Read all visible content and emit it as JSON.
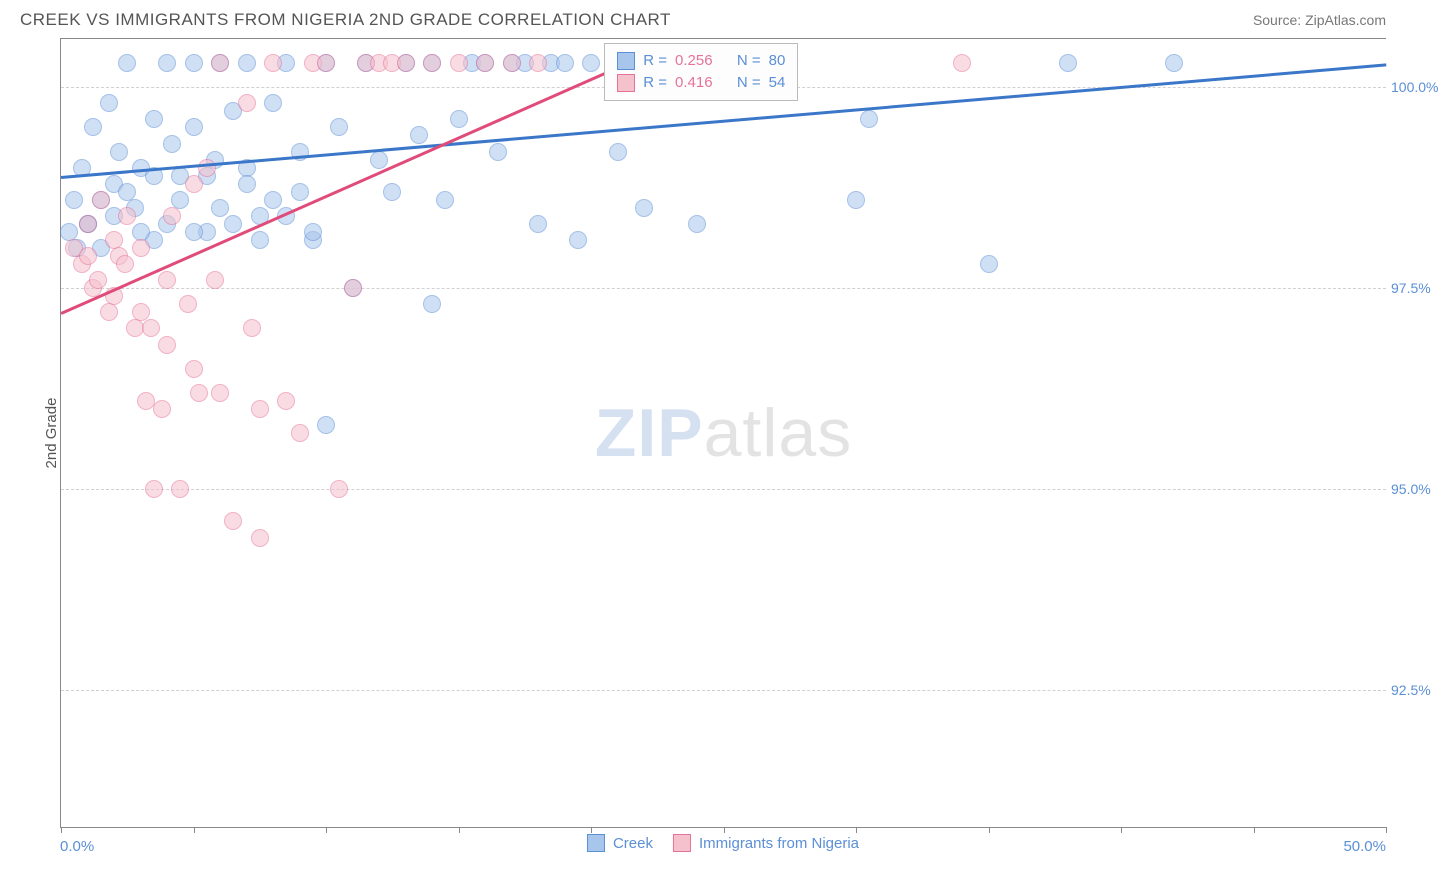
{
  "header": {
    "title": "CREEK VS IMMIGRANTS FROM NIGERIA 2ND GRADE CORRELATION CHART",
    "source": "Source: ZipAtlas.com"
  },
  "chart": {
    "type": "scatter",
    "ylabel": "2nd Grade",
    "xlim": [
      0,
      50
    ],
    "ylim": [
      90.8,
      100.6
    ],
    "x_ticks": [
      0,
      5,
      10,
      15,
      20,
      25,
      30,
      35,
      40,
      45,
      50
    ],
    "y_gridlines": [
      92.5,
      95.0,
      97.5,
      100.0
    ],
    "y_tick_labels": [
      "92.5%",
      "95.0%",
      "97.5%",
      "100.0%"
    ],
    "x_start_label": "0.0%",
    "x_end_label": "50.0%",
    "background_color": "#ffffff",
    "grid_color": "#d0d0d0",
    "axis_color": "#888888",
    "marker_radius": 9,
    "marker_opacity": 0.55,
    "series": [
      {
        "name": "Creek",
        "fill": "#a8c5ec",
        "stroke": "#5b8fd6",
        "line_color": "#3b77c9",
        "r_value": "0.256",
        "n_value": "80",
        "trend": {
          "x1": 0,
          "y1": 98.9,
          "x2": 50,
          "y2": 100.3
        },
        "points": [
          [
            0.5,
            98.6
          ],
          [
            0.8,
            99.0
          ],
          [
            1.0,
            98.3
          ],
          [
            1.2,
            99.5
          ],
          [
            1.5,
            98.0
          ],
          [
            1.8,
            99.8
          ],
          [
            2.0,
            98.8
          ],
          [
            2.2,
            99.2
          ],
          [
            2.5,
            100.3
          ],
          [
            2.8,
            98.5
          ],
          [
            3.0,
            99.0
          ],
          [
            3.5,
            98.1
          ],
          [
            3.5,
            99.6
          ],
          [
            4.0,
            100.3
          ],
          [
            4.2,
            99.3
          ],
          [
            4.5,
            98.9
          ],
          [
            5.0,
            99.5
          ],
          [
            5.0,
            100.3
          ],
          [
            5.5,
            98.2
          ],
          [
            5.8,
            99.1
          ],
          [
            6.0,
            100.3
          ],
          [
            6.5,
            99.7
          ],
          [
            7.0,
            99.0
          ],
          [
            7.0,
            100.3
          ],
          [
            7.5,
            98.4
          ],
          [
            8.0,
            99.8
          ],
          [
            8.5,
            100.3
          ],
          [
            9.0,
            99.2
          ],
          [
            9.5,
            98.1
          ],
          [
            10.0,
            100.3
          ],
          [
            10.5,
            99.5
          ],
          [
            11.0,
            97.5
          ],
          [
            11.5,
            100.3
          ],
          [
            12.0,
            99.1
          ],
          [
            12.5,
            98.7
          ],
          [
            13.0,
            100.3
          ],
          [
            13.5,
            99.4
          ],
          [
            14.0,
            100.3
          ],
          [
            14.5,
            98.6
          ],
          [
            15.0,
            99.6
          ],
          [
            15.5,
            100.3
          ],
          [
            16.0,
            100.3
          ],
          [
            16.5,
            99.2
          ],
          [
            17.0,
            100.3
          ],
          [
            17.5,
            100.3
          ],
          [
            18.0,
            98.3
          ],
          [
            18.5,
            100.3
          ],
          [
            19.0,
            100.3
          ],
          [
            19.5,
            98.1
          ],
          [
            20.0,
            100.3
          ],
          [
            21.0,
            99.2
          ],
          [
            22.0,
            98.5
          ],
          [
            24.0,
            98.3
          ],
          [
            30.0,
            98.6
          ],
          [
            30.5,
            99.6
          ],
          [
            35.0,
            97.8
          ],
          [
            38.0,
            100.3
          ],
          [
            42.0,
            100.3
          ],
          [
            1.0,
            98.3
          ],
          [
            1.5,
            98.6
          ],
          [
            2.0,
            98.4
          ],
          [
            2.5,
            98.7
          ],
          [
            3.0,
            98.2
          ],
          [
            3.5,
            98.9
          ],
          [
            4.0,
            98.3
          ],
          [
            4.5,
            98.6
          ],
          [
            5.0,
            98.2
          ],
          [
            5.5,
            98.9
          ],
          [
            6.0,
            98.5
          ],
          [
            6.5,
            98.3
          ],
          [
            7.0,
            98.8
          ],
          [
            7.5,
            98.1
          ],
          [
            8.0,
            98.6
          ],
          [
            8.5,
            98.4
          ],
          [
            9.0,
            98.7
          ],
          [
            9.5,
            98.2
          ],
          [
            14.0,
            97.3
          ],
          [
            10.0,
            95.8
          ],
          [
            0.3,
            98.2
          ],
          [
            0.6,
            98.0
          ]
        ]
      },
      {
        "name": "Immigrants from Nigeria",
        "fill": "#f5c1cd",
        "stroke": "#e57399",
        "line_color": "#e04b7a",
        "r_value": "0.416",
        "n_value": "54",
        "trend": {
          "x1": 0,
          "y1": 97.2,
          "x2": 22,
          "y2": 100.4
        },
        "points": [
          [
            0.5,
            98.0
          ],
          [
            0.8,
            97.8
          ],
          [
            1.0,
            98.3
          ],
          [
            1.2,
            97.5
          ],
          [
            1.5,
            98.6
          ],
          [
            1.8,
            97.2
          ],
          [
            2.0,
            98.1
          ],
          [
            2.2,
            97.9
          ],
          [
            2.5,
            98.4
          ],
          [
            2.8,
            97.0
          ],
          [
            3.0,
            98.0
          ],
          [
            3.2,
            96.1
          ],
          [
            3.5,
            95.0
          ],
          [
            3.8,
            96.0
          ],
          [
            4.0,
            97.6
          ],
          [
            4.2,
            98.4
          ],
          [
            4.5,
            95.0
          ],
          [
            4.8,
            97.3
          ],
          [
            5.0,
            98.8
          ],
          [
            5.2,
            96.2
          ],
          [
            5.5,
            99.0
          ],
          [
            5.8,
            97.6
          ],
          [
            6.0,
            100.3
          ],
          [
            6.5,
            94.6
          ],
          [
            7.0,
            99.8
          ],
          [
            7.2,
            97.0
          ],
          [
            7.5,
            94.4
          ],
          [
            8.0,
            100.3
          ],
          [
            8.5,
            96.1
          ],
          [
            9.0,
            95.7
          ],
          [
            9.5,
            100.3
          ],
          [
            10.0,
            100.3
          ],
          [
            10.5,
            95.0
          ],
          [
            11.0,
            97.5
          ],
          [
            11.5,
            100.3
          ],
          [
            12.0,
            100.3
          ],
          [
            12.5,
            100.3
          ],
          [
            13.0,
            100.3
          ],
          [
            14.0,
            100.3
          ],
          [
            15.0,
            100.3
          ],
          [
            16.0,
            100.3
          ],
          [
            17.0,
            100.3
          ],
          [
            18.0,
            100.3
          ],
          [
            34.0,
            100.3
          ],
          [
            1.0,
            97.9
          ],
          [
            1.4,
            97.6
          ],
          [
            2.0,
            97.4
          ],
          [
            2.4,
            97.8
          ],
          [
            3.0,
            97.2
          ],
          [
            3.4,
            97.0
          ],
          [
            4.0,
            96.8
          ],
          [
            5.0,
            96.5
          ],
          [
            6.0,
            96.2
          ],
          [
            7.5,
            96.0
          ]
        ]
      }
    ],
    "legend_box": {
      "left_pct": 41,
      "top_pct": 0.5,
      "rows": [
        {
          "swatch_fill": "#a8c5ec",
          "swatch_stroke": "#5b8fd6",
          "r_label": "R =",
          "r_value": "0.256",
          "n_label": "N =",
          "n_value": "80"
        },
        {
          "swatch_fill": "#f5c1cd",
          "swatch_stroke": "#e57399",
          "r_label": "R =",
          "r_value": "0.416",
          "n_label": "N =",
          "n_value": "54"
        }
      ]
    },
    "bottom_legend": [
      {
        "swatch_fill": "#a8c5ec",
        "swatch_stroke": "#5b8fd6",
        "label": "Creek"
      },
      {
        "swatch_fill": "#f5c1cd",
        "swatch_stroke": "#e57399",
        "label": "Immigrants from Nigeria"
      }
    ],
    "watermark": {
      "zip": "ZIP",
      "atlas": "atlas"
    }
  }
}
